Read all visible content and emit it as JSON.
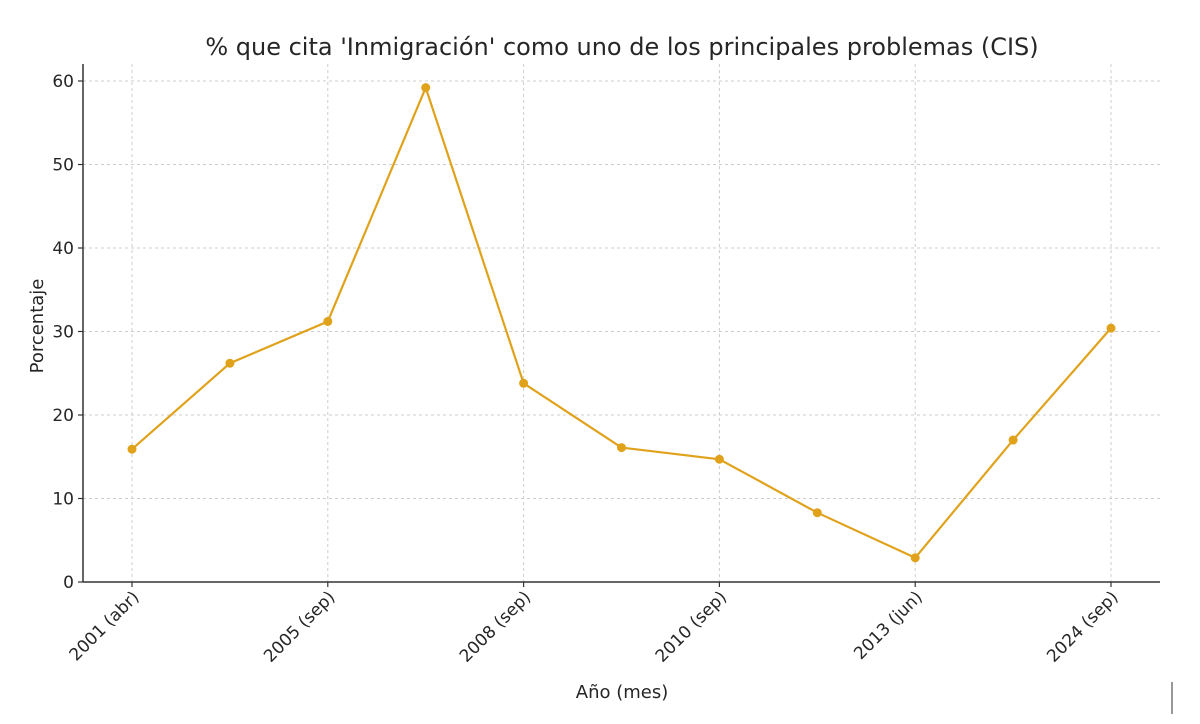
{
  "chart_data": {
    "type": "line",
    "title": "% que cita 'Inmigración' como uno de los principales problemas (CIS)",
    "xlabel": "Año (mes)",
    "ylabel": "Porcentaje",
    "ylim": [
      0,
      62
    ],
    "yticks": [
      0,
      10,
      20,
      30,
      40,
      50,
      60
    ],
    "xtick_labels": [
      "2001 (abr)",
      "2005 (sep)",
      "2008 (sep)",
      "2010 (sep)",
      "2013 (jun)",
      "2024 (sep)"
    ],
    "xtick_indices": [
      0,
      2,
      4,
      6,
      8,
      10
    ],
    "grid": true,
    "series": [
      {
        "name": "Inmigración",
        "color": "#E0A21B",
        "marker": "circle",
        "values": [
          15.9,
          26.2,
          31.2,
          59.2,
          23.8,
          16.1,
          14.7,
          8.3,
          2.9,
          17.0,
          30.4
        ]
      }
    ]
  }
}
